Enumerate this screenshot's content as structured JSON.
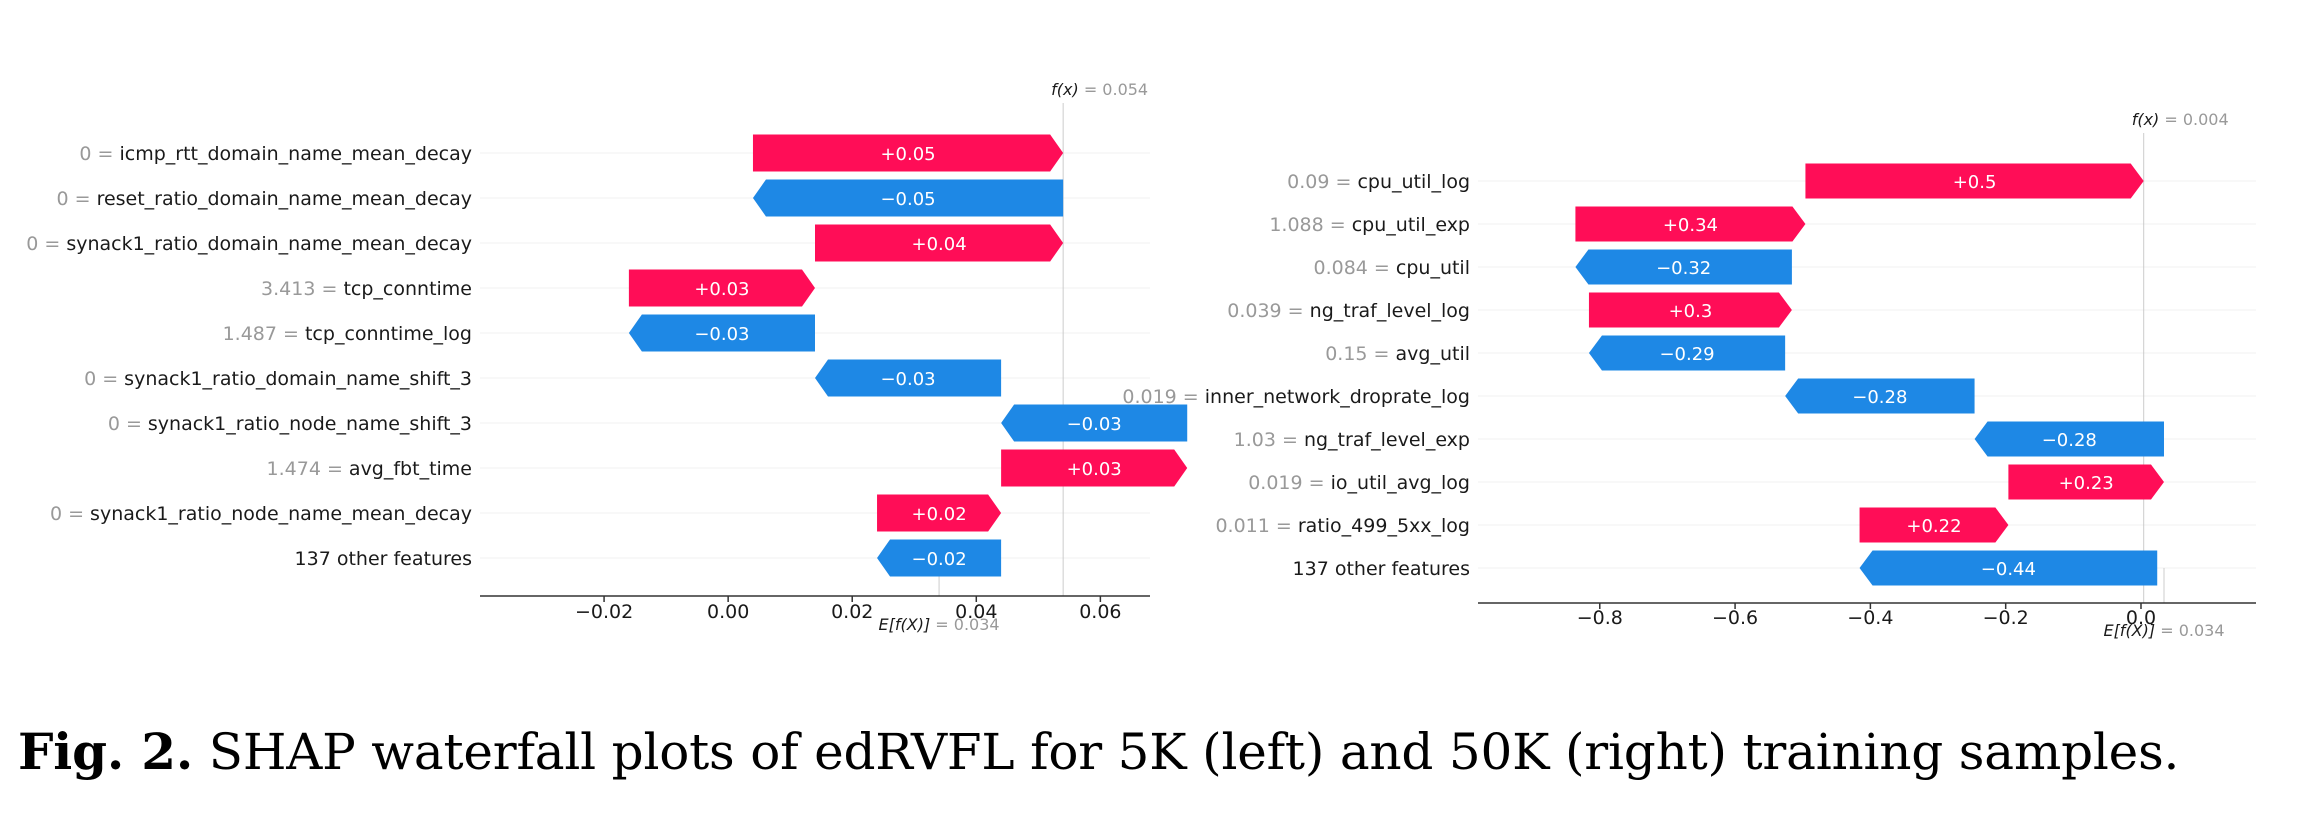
{
  "colors": {
    "positive": "#ff0d57",
    "negative": "#1e88e5",
    "text": "#1a1a1a",
    "muted": "#999999",
    "axis": "#333333",
    "grid": "#e6e6e6"
  },
  "caption": {
    "label": "Fig. 2.",
    "text": "SHAP waterfall plots of edRVFL for 5K (left) and 50K (right) training samples."
  },
  "chart_data": [
    {
      "type": "waterfall",
      "fx_label": "f(x)",
      "fx_value": "= 0.054",
      "ex_label": "E[f(X)]",
      "ex_value": "= 0.034",
      "base_value": 0.034,
      "final_value": 0.054,
      "xlim": [
        -0.04,
        0.068
      ],
      "xticks": [
        -0.02,
        0.0,
        0.02,
        0.04,
        0.06
      ],
      "xtick_labels": [
        "−0.02",
        "0.00",
        "0.02",
        "0.04",
        "0.06"
      ],
      "features": [
        {
          "value": "0",
          "name": "icmp_rtt_domain_name_mean_decay",
          "shap": 0.05,
          "label": "+0.05"
        },
        {
          "value": "0",
          "name": "reset_ratio_domain_name_mean_decay",
          "shap": -0.05,
          "label": "−0.05"
        },
        {
          "value": "0",
          "name": "synack1_ratio_domain_name_mean_decay",
          "shap": 0.04,
          "label": "+0.04"
        },
        {
          "value": "3.413",
          "name": "tcp_conntime",
          "shap": 0.03,
          "label": "+0.03"
        },
        {
          "value": "1.487",
          "name": "tcp_conntime_log",
          "shap": -0.03,
          "label": "−0.03"
        },
        {
          "value": "0",
          "name": "synack1_ratio_domain_name_shift_3",
          "shap": -0.03,
          "label": "−0.03"
        },
        {
          "value": "0",
          "name": "synack1_ratio_node_name_shift_3",
          "shap": -0.03,
          "label": "−0.03"
        },
        {
          "value": "1.474",
          "name": "avg_fbt_time",
          "shap": 0.03,
          "label": "+0.03"
        },
        {
          "value": "0",
          "name": "synack1_ratio_node_name_mean_decay",
          "shap": 0.02,
          "label": "+0.02"
        },
        {
          "value": "",
          "name": "137 other features",
          "shap": -0.02,
          "label": "−0.02"
        }
      ]
    },
    {
      "type": "waterfall",
      "fx_label": "f(x)",
      "fx_value": "= 0.004",
      "ex_label": "E[f(X)]",
      "ex_value": "= 0.034",
      "base_value": 0.034,
      "final_value": 0.004,
      "xlim": [
        -0.98,
        0.17
      ],
      "xticks": [
        -0.8,
        -0.6,
        -0.4,
        -0.2,
        0.0
      ],
      "xtick_labels": [
        "−0.8",
        "−0.6",
        "−0.4",
        "−0.2",
        "0.0"
      ],
      "features": [
        {
          "value": "0.09",
          "name": "cpu_util_log",
          "shap": 0.5,
          "label": "+0.5"
        },
        {
          "value": "1.088",
          "name": "cpu_util_exp",
          "shap": 0.34,
          "label": "+0.34"
        },
        {
          "value": "0.084",
          "name": "cpu_util",
          "shap": -0.32,
          "label": "−0.32"
        },
        {
          "value": "0.039",
          "name": "ng_traf_level_log",
          "shap": 0.3,
          "label": "+0.3"
        },
        {
          "value": "0.15",
          "name": "avg_util",
          "shap": -0.29,
          "label": "−0.29"
        },
        {
          "value": "0.019",
          "name": "inner_network_droprate_log",
          "shap": -0.28,
          "label": "−0.28"
        },
        {
          "value": "1.03",
          "name": "ng_traf_level_exp",
          "shap": -0.28,
          "label": "−0.28"
        },
        {
          "value": "0.019",
          "name": "io_util_avg_log",
          "shap": 0.23,
          "label": "+0.23"
        },
        {
          "value": "0.011",
          "name": "ratio_499_5xx_log",
          "shap": 0.22,
          "label": "+0.22"
        },
        {
          "value": "",
          "name": "137 other features",
          "shap": -0.44,
          "label": "−0.44"
        }
      ]
    }
  ]
}
